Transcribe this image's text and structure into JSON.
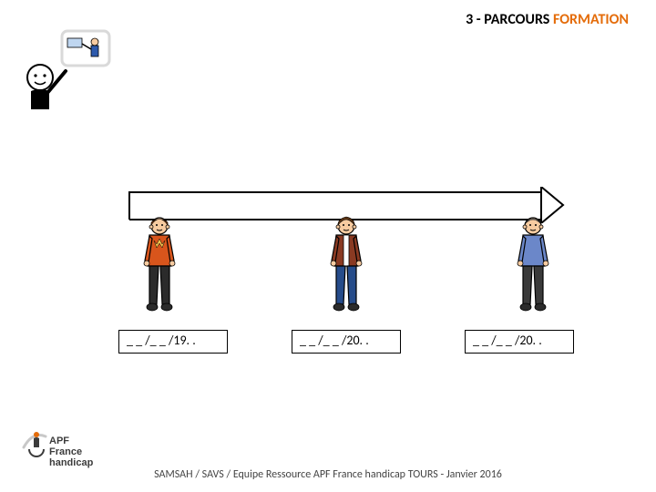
{
  "title": {
    "prefix": "3 - PARCOURS  ",
    "accent_word": "FORMATION",
    "prefix_color": "#000000",
    "accent_color": "#E46C0A",
    "fontsize": 16
  },
  "arrow": {
    "stroke": "#000000",
    "stroke_width": 2,
    "fill": "none",
    "length": 480,
    "height": 32
  },
  "top_icon": {
    "face_fill": "#FFFFFF",
    "outline": "#000000",
    "board_frame": "#D9D9D9",
    "board_bg": "#FFFFFF",
    "teacher_color": "#2E5AAC",
    "stroke_width": 2
  },
  "figures": [
    {
      "id": "figure-young",
      "skin": "#F7CBA0",
      "hair": "#7A3B12",
      "shirt": "#D8551C",
      "shirt_accent": "#F2C14E",
      "pants": "#2B2B2B",
      "shoes": "#2B2B2B",
      "outline": "#000000",
      "stroke_width": 1.2
    },
    {
      "id": "figure-adult",
      "skin": "#F7CBA0",
      "hair": "#5B3414",
      "shirt": "#FFFFFF",
      "jacket": "#8A3A22",
      "pants": "#264C8A",
      "shoes": "#2B2B2B",
      "outline": "#000000",
      "stroke_width": 1.2
    },
    {
      "id": "figure-elder",
      "skin": "#F7CBA0",
      "hair": "#CFCFCF",
      "shirt": "#6B87C9",
      "pants": "#3A3A3A",
      "shoes": "#2B2B2B",
      "outline": "#000000",
      "stroke_width": 1.2
    }
  ],
  "dates": [
    {
      "text": "_ _ /_ _ /19. ."
    },
    {
      "text": "_ _ /_ _ /20. ."
    },
    {
      "text": "_ _ /_ _ /20. ."
    }
  ],
  "date_box": {
    "border_color": "#000000",
    "fontsize": 14
  },
  "logo": {
    "line1": "APF",
    "line2": "France",
    "line3": "handicap",
    "text_color": "#3C3C3C",
    "accent_dot": "#E46C0A",
    "swoosh": "#C8C8C8",
    "fontsize": 11
  },
  "footer": {
    "text": "SAMSAH / SAVS / Equipe Ressource APF France handicap TOURS - Janvier 2016",
    "fontsize": 12,
    "color": "#444444"
  }
}
